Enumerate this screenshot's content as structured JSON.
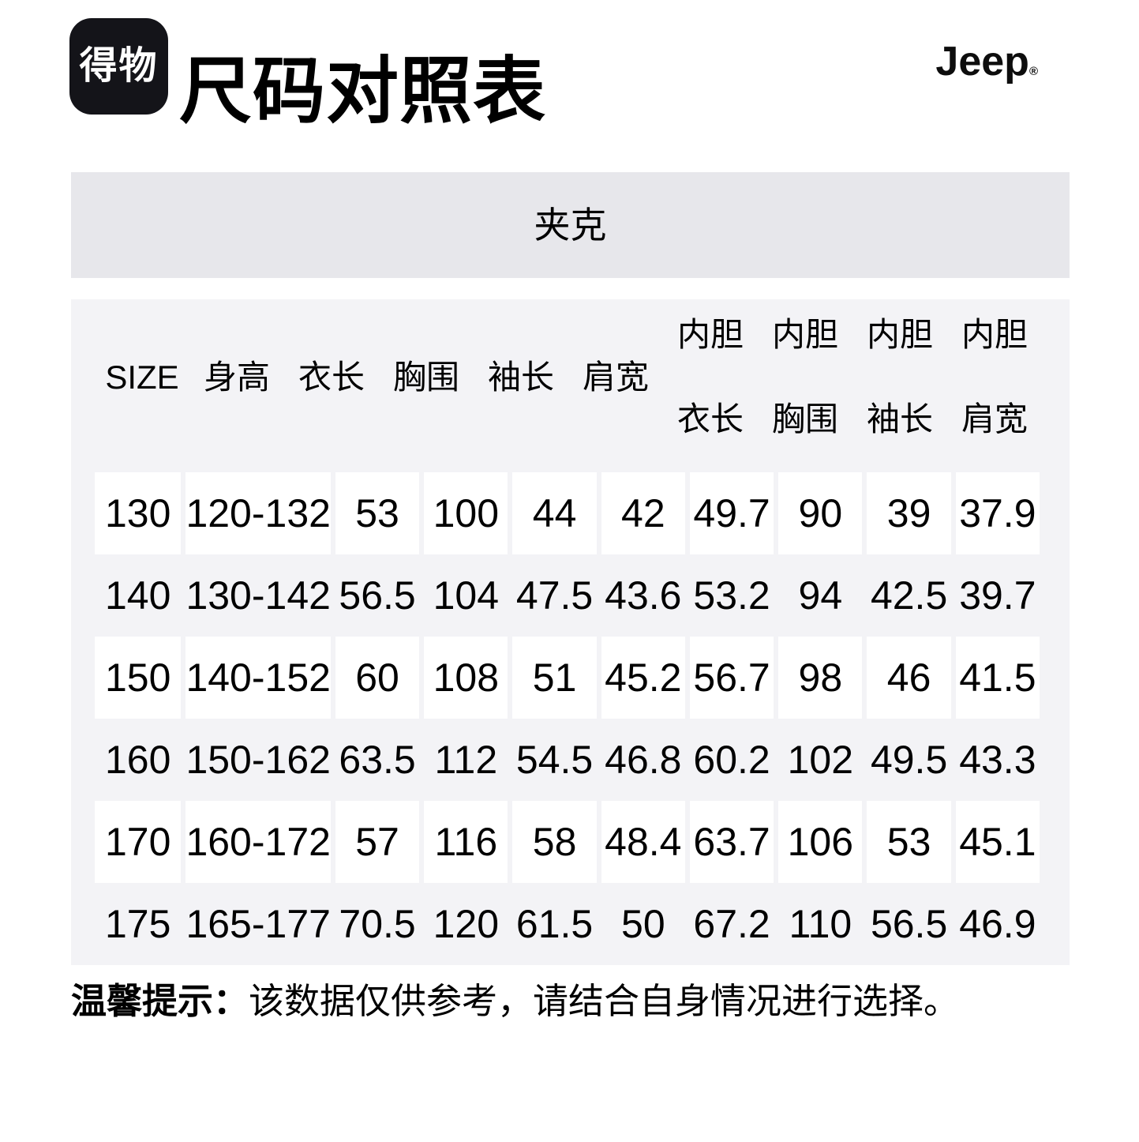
{
  "page": {
    "brand_logo_text": "得物",
    "title": "尺码对照表",
    "brand_right": "Jeep",
    "brand_right_reg": "®"
  },
  "category_banner": {
    "label": "夹克"
  },
  "size_table": {
    "header": [
      {
        "line1": "SIZE"
      },
      {
        "line1": "身高"
      },
      {
        "line1": "衣长"
      },
      {
        "line1": "胸围"
      },
      {
        "line1": "袖长"
      },
      {
        "line1": "肩宽"
      },
      {
        "line1": "内胆",
        "line2": "衣长"
      },
      {
        "line1": "内胆",
        "line2": "胸围"
      },
      {
        "line1": "内胆",
        "line2": "袖长"
      },
      {
        "line1": "内胆",
        "line2": "肩宽"
      }
    ],
    "rows": [
      [
        "130",
        "120-132",
        "53",
        "100",
        "44",
        "42",
        "49.7",
        "90",
        "39",
        "37.9"
      ],
      [
        "140",
        "130-142",
        "56.5",
        "104",
        "47.5",
        "43.6",
        "53.2",
        "94",
        "42.5",
        "39.7"
      ],
      [
        "150",
        "140-152",
        "60",
        "108",
        "51",
        "45.2",
        "56.7",
        "98",
        "46",
        "41.5"
      ],
      [
        "160",
        "150-162",
        "63.5",
        "112",
        "54.5",
        "46.8",
        "60.2",
        "102",
        "49.5",
        "43.3"
      ],
      [
        "170",
        "160-172",
        "57",
        "116",
        "58",
        "48.4",
        "63.7",
        "106",
        "53",
        "45.1"
      ],
      [
        "175",
        "165-177",
        "70.5",
        "120",
        "61.5",
        "50",
        "67.2",
        "110",
        "56.5",
        "46.9"
      ]
    ]
  },
  "note": {
    "label": "温馨提示：",
    "text": "该数据仅供参考，请结合自身情况进行选择。"
  },
  "colors": {
    "banner_bg": "#e7e7eb",
    "table_bg": "#f3f3f6",
    "cell_bg": "#ffffff",
    "logo_bg": "#141419",
    "text": "#000000"
  }
}
